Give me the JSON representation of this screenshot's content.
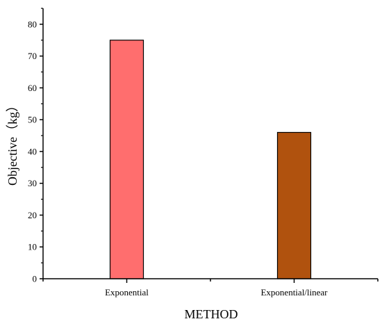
{
  "chart_data": {
    "type": "bar",
    "title": "",
    "xlabel": "METHOD",
    "ylabel": "Objective（kg）",
    "categories": [
      "Exponential",
      "Exponential/linear"
    ],
    "values": [
      75,
      46
    ],
    "colors": [
      "#ff6e6e",
      "#b0520e"
    ],
    "ylim": [
      0,
      85
    ],
    "yticks": [
      0,
      10,
      20,
      30,
      40,
      50,
      60,
      70,
      80
    ],
    "grid": false,
    "legend": "none"
  }
}
